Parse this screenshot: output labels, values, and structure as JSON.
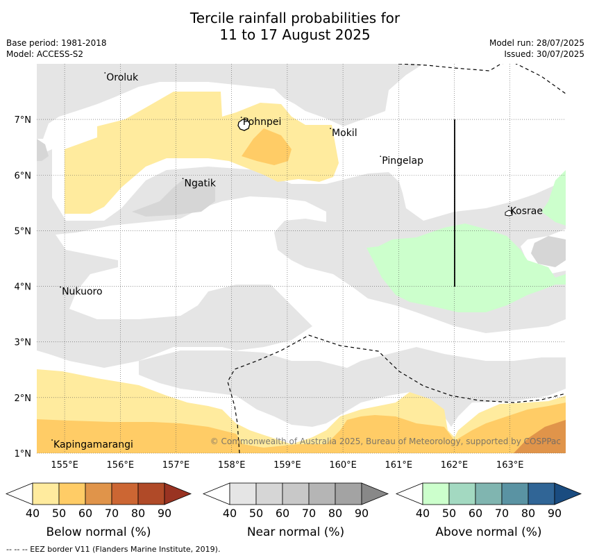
{
  "header": {
    "title_line1": "Tercile rainfall probabilities for",
    "title_line2": "11 to 17 August 2025",
    "base_period": "Base period: 1981-2018",
    "model": "Model: ACCESS-S2",
    "model_run": "Model run: 28/07/2025",
    "issued": "Issued: 30/07/2025"
  },
  "map": {
    "lat_ticks": [
      "7°N",
      "6°N",
      "5°N",
      "4°N",
      "3°N",
      "2°N",
      "1°N"
    ],
    "lon_ticks": [
      "155°E",
      "156°E",
      "157°E",
      "158°E",
      "159°E",
      "160°E",
      "161°E",
      "162°E",
      "163°E"
    ],
    "places": [
      {
        "name": "Oroluk",
        "lon": 155.75,
        "lat": 7.7
      },
      {
        "name": "Pohnpei",
        "lon": 158.2,
        "lat": 6.9
      },
      {
        "name": "Mokil",
        "lon": 159.8,
        "lat": 6.7
      },
      {
        "name": "Pingelap",
        "lon": 160.7,
        "lat": 6.2
      },
      {
        "name": "Ngatik",
        "lon": 157.15,
        "lat": 5.8
      },
      {
        "name": "Kosrae",
        "lon": 163.0,
        "lat": 5.3
      },
      {
        "name": "Nukuoro",
        "lon": 154.95,
        "lat": 3.85
      },
      {
        "name": "Kapingamarangi",
        "lon": 154.8,
        "lat": 1.1
      }
    ],
    "copyright": "© Commonwealth of Australia 2025, Bureau of Meteorology, supported by COSPPac",
    "colors": {
      "near_light": "#e5e5e5",
      "near_mid": "#d6d6d6",
      "below_40": "#ffeb9e",
      "below_50": "#ffcc66",
      "below_60": "#e0944a",
      "above_40": "#ccffcc"
    }
  },
  "legends": [
    {
      "label": "Below normal (%)",
      "ticks": [
        "40",
        "50",
        "60",
        "70",
        "80",
        "90"
      ],
      "colors": [
        "#ffeb9e",
        "#ffcc66",
        "#e0944a",
        "#cc6633",
        "#b04a28",
        "#993322"
      ]
    },
    {
      "label": "Near normal (%)",
      "ticks": [
        "40",
        "50",
        "60",
        "70",
        "80",
        "90"
      ],
      "colors": [
        "#e5e5e5",
        "#d6d6d6",
        "#c8c8c8",
        "#b5b5b5",
        "#a3a3a3",
        "#888888"
      ]
    },
    {
      "label": "Above normal (%)",
      "ticks": [
        "40",
        "50",
        "60",
        "70",
        "80",
        "90"
      ],
      "colors": [
        "#ccffcc",
        "#a3d9c1",
        "#80b5b0",
        "#5a93a3",
        "#306596",
        "#1a4c80"
      ]
    }
  ],
  "footer": {
    "eez_note": "--  --  -- EEZ border V11 (Flanders Marine Institute, 2019)."
  }
}
